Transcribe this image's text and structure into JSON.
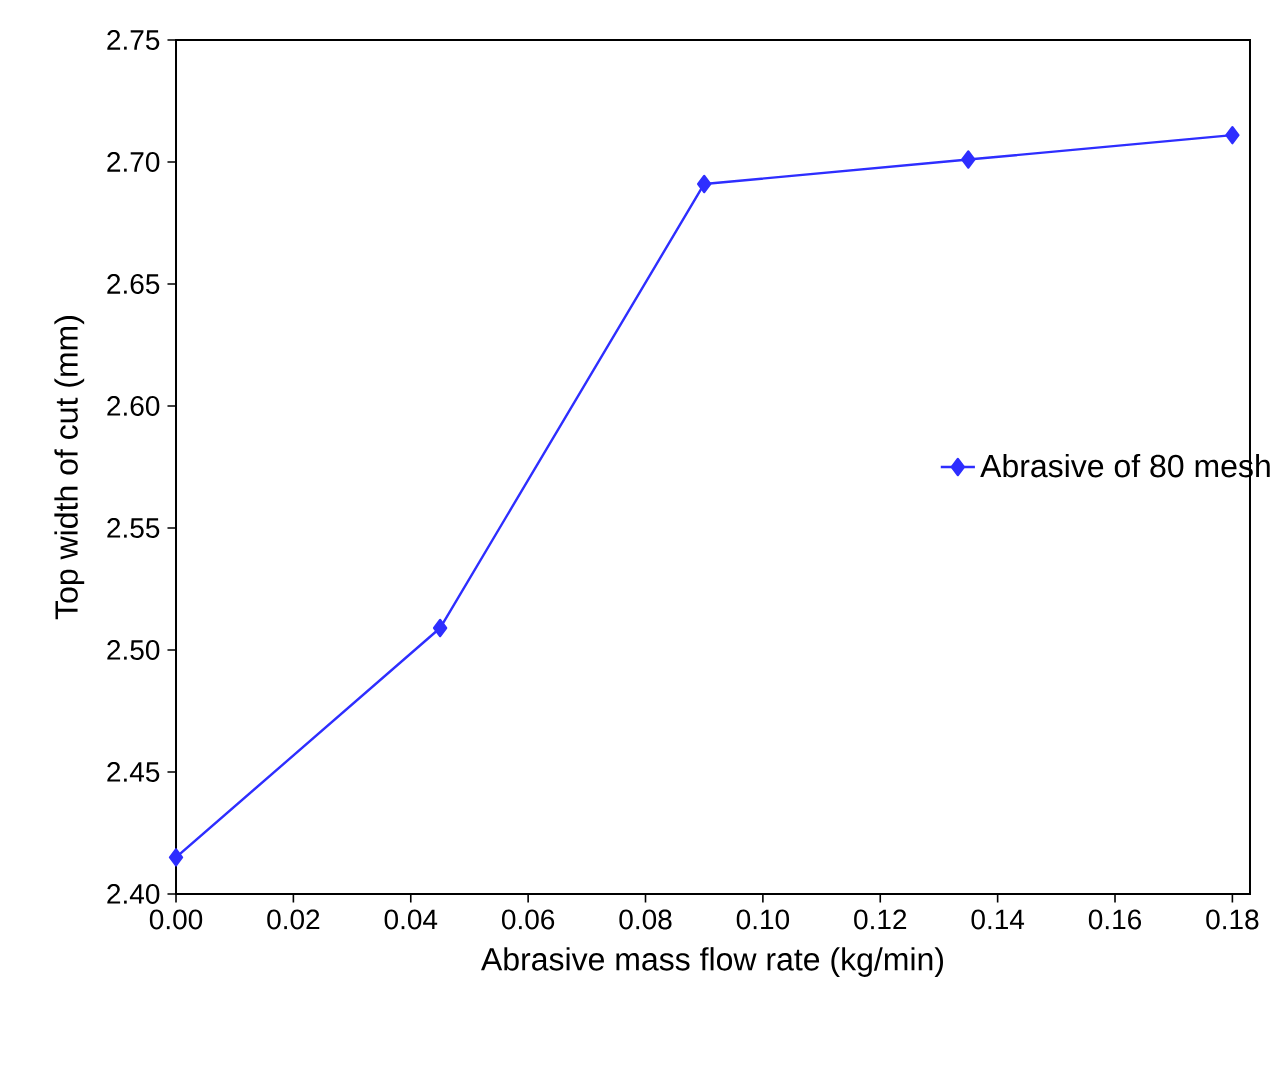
{
  "chart_data": {
    "type": "line",
    "xlabel": "Abrasive mass flow rate (kg/min)",
    "ylabel": "Top width of cut (mm)",
    "x": [
      0,
      0.045,
      0.09,
      0.135,
      0.18
    ],
    "series": [
      {
        "name": "Abrasive of 80 mesh",
        "color": "#2e2eff",
        "values": [
          2.415,
          2.509,
          2.691,
          2.701,
          2.711
        ]
      }
    ],
    "xlim": [
      0,
      0.183
    ],
    "ylim": [
      2.4,
      2.75
    ],
    "xticks": [
      {
        "value": 0,
        "label": "0.00"
      },
      {
        "value": 0.02,
        "label": "0.02"
      },
      {
        "value": 0.04,
        "label": "0.04"
      },
      {
        "value": 0.06,
        "label": "0.06"
      },
      {
        "value": 0.08,
        "label": "0.08"
      },
      {
        "value": 0.1,
        "label": "0.10"
      },
      {
        "value": 0.12,
        "label": "0.12"
      },
      {
        "value": 0.14,
        "label": "0.14"
      },
      {
        "value": 0.16,
        "label": "0.16"
      },
      {
        "value": 0.18,
        "label": "0.18"
      }
    ],
    "yticks": [
      {
        "value": 2.4,
        "label": "2.40"
      },
      {
        "value": 2.45,
        "label": "2.45"
      },
      {
        "value": 2.5,
        "label": "2.50"
      },
      {
        "value": 2.55,
        "label": "2.55"
      },
      {
        "value": 2.6,
        "label": "2.60"
      },
      {
        "value": 2.65,
        "label": "2.65"
      },
      {
        "value": 2.7,
        "label": "2.70"
      },
      {
        "value": 2.75,
        "label": "2.75"
      }
    ],
    "marker": "diamond",
    "line_style": "solid",
    "legend": "right",
    "grid": false
  }
}
